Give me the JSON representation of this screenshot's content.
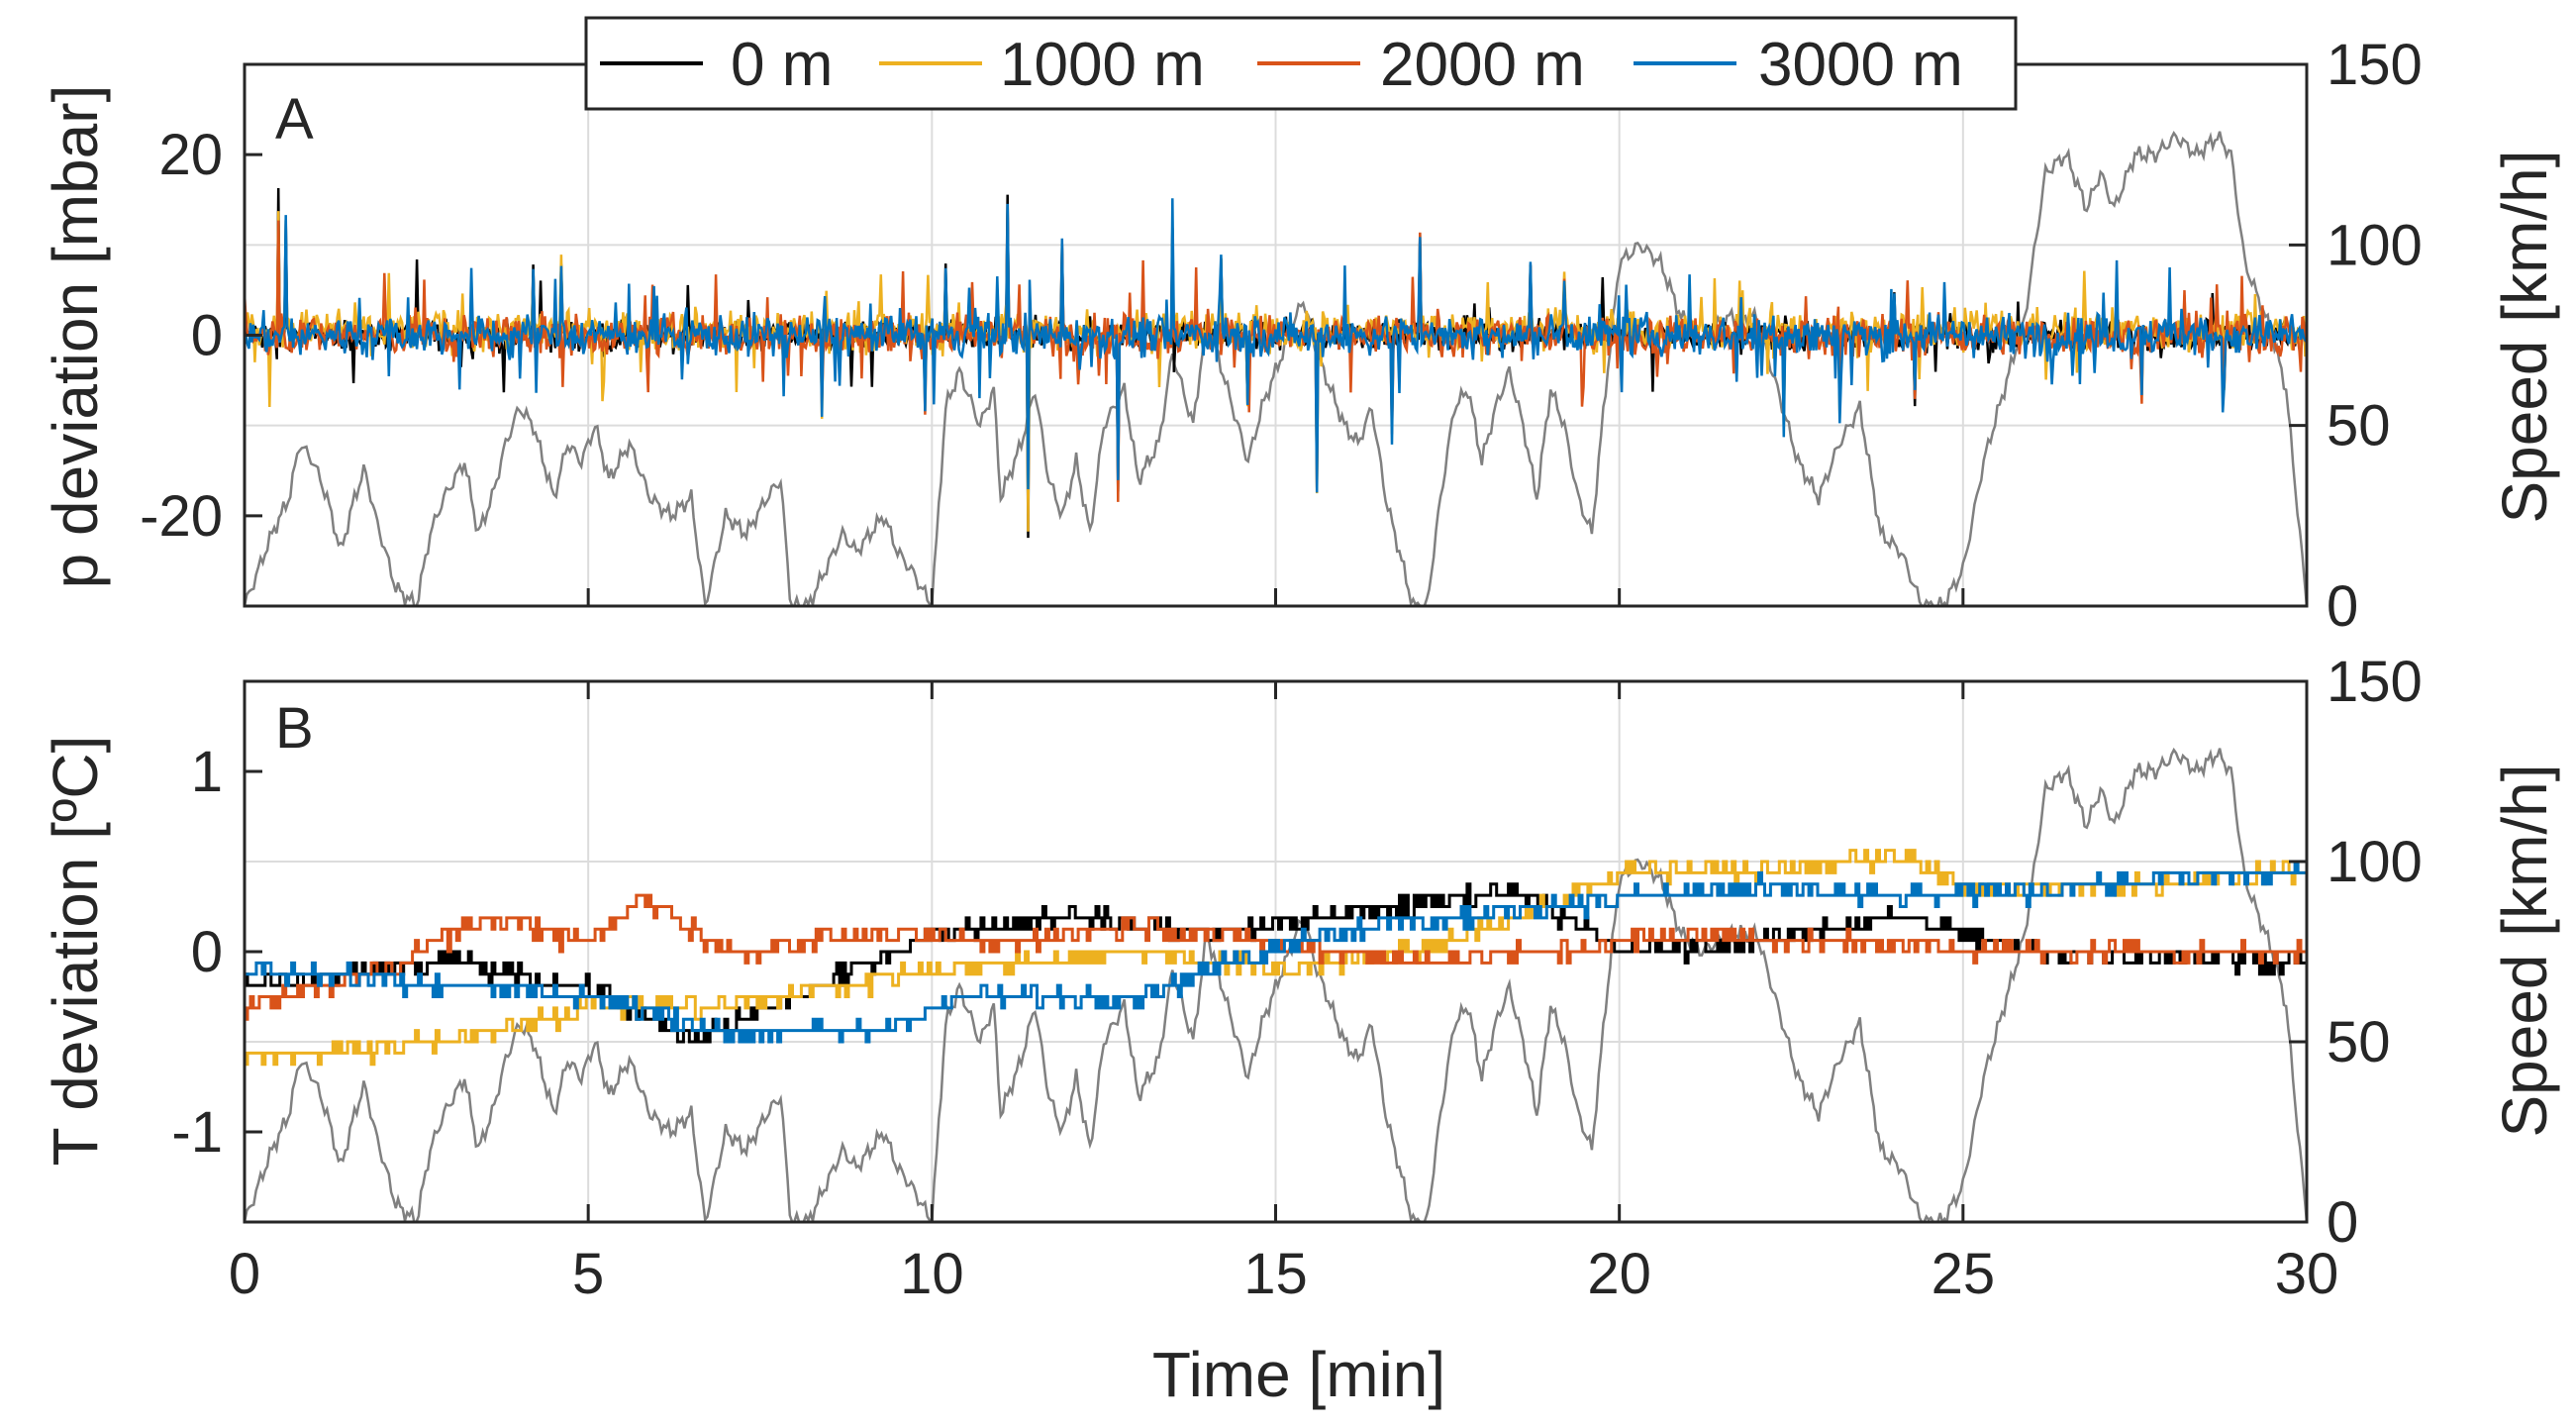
{
  "chart_data": [
    {
      "panel": "A",
      "type": "line",
      "xlabel": "",
      "ylabel": "p deviation [mbar]",
      "ylabel_right": "Speed [km/h]",
      "xlim": [
        0,
        30
      ],
      "ylim": [
        -30,
        30
      ],
      "ylim_right": [
        0,
        150
      ],
      "yticks": [
        -20,
        0,
        20
      ],
      "yticks_right": [
        0,
        50,
        100,
        150
      ],
      "xticks": [
        0,
        5,
        10,
        15,
        20,
        25,
        30
      ],
      "grid": true,
      "series": [
        {
          "name": "0 m",
          "color": "#000000",
          "base": 0,
          "noise": 1.2,
          "spikes": 0.02
        },
        {
          "name": "1000 m",
          "color": "#EDB120",
          "base": 1,
          "noise": 1.6,
          "spikes": 0.04
        },
        {
          "name": "2000 m",
          "color": "#D95319",
          "base": 0,
          "noise": 1.6,
          "spikes": 0.05
        },
        {
          "name": "3000 m",
          "color": "#0072BD",
          "base": 0,
          "noise": 1.6,
          "spikes": 0.05
        }
      ],
      "spike_events": [
        {
          "t": 0.5,
          "v": 17
        },
        {
          "t": 0.6,
          "v": 14
        },
        {
          "t": 4.2,
          "v": 8
        },
        {
          "t": 4.6,
          "v": 10
        },
        {
          "t": 8.4,
          "v": -10
        },
        {
          "t": 9.9,
          "v": -9
        },
        {
          "t": 10.2,
          "v": 8
        },
        {
          "t": 11.1,
          "v": 16
        },
        {
          "t": 11.4,
          "v": -23
        },
        {
          "t": 11.9,
          "v": 13
        },
        {
          "t": 12.7,
          "v": -22
        },
        {
          "t": 13.5,
          "v": 16
        },
        {
          "t": 14.2,
          "v": 12
        },
        {
          "t": 14.6,
          "v": -10
        },
        {
          "t": 15.6,
          "v": -19
        },
        {
          "t": 16.7,
          "v": -13
        },
        {
          "t": 17.1,
          "v": 15
        },
        {
          "t": 18.7,
          "v": 9
        },
        {
          "t": 19.2,
          "v": 8
        },
        {
          "t": 22.4,
          "v": -12
        },
        {
          "t": 23.2,
          "v": -10
        },
        {
          "t": 24.3,
          "v": -8
        },
        {
          "t": 27.6,
          "v": -8
        },
        {
          "t": 28.8,
          "v": -7
        }
      ]
    },
    {
      "panel": "B",
      "type": "line",
      "xlabel": "Time [min]",
      "ylabel": "T deviation [ºC]",
      "ylabel_right": "Speed [km/h]",
      "xlim": [
        0,
        30
      ],
      "ylim": [
        -1.5,
        1.5
      ],
      "ylim_right": [
        0,
        150
      ],
      "yticks": [
        -1,
        0,
        1
      ],
      "yticks_right": [
        0,
        50,
        100,
        150
      ],
      "xticks": [
        0,
        5,
        10,
        15,
        20,
        25,
        30
      ],
      "grid": true,
      "series": [
        {
          "name": "0 m",
          "color": "#000000",
          "trend": [
            [
              0,
              -0.2
            ],
            [
              3,
              -0.05
            ],
            [
              5,
              -0.2
            ],
            [
              6.5,
              -0.5
            ],
            [
              8,
              -0.25
            ],
            [
              10,
              0.1
            ],
            [
              12,
              0.2
            ],
            [
              14,
              0.1
            ],
            [
              16,
              0.2
            ],
            [
              18.5,
              0.35
            ],
            [
              20,
              0.0
            ],
            [
              22,
              0.05
            ],
            [
              24,
              0.2
            ],
            [
              26,
              0.0
            ],
            [
              30,
              -0.05
            ]
          ]
        },
        {
          "name": "1000 m",
          "color": "#EDB120",
          "trend": [
            [
              0,
              -0.6
            ],
            [
              3,
              -0.5
            ],
            [
              5,
              -0.3
            ],
            [
              7,
              -0.3
            ],
            [
              10,
              -0.1
            ],
            [
              13,
              0.0
            ],
            [
              15,
              -0.1
            ],
            [
              17,
              0.0
            ],
            [
              19,
              0.25
            ],
            [
              20,
              0.45
            ],
            [
              22.5,
              0.45
            ],
            [
              24,
              0.55
            ],
            [
              25,
              0.35
            ],
            [
              27,
              0.35
            ],
            [
              30,
              0.45
            ]
          ]
        },
        {
          "name": "2000 m",
          "color": "#D95319",
          "trend": [
            [
              0,
              -0.3
            ],
            [
              2,
              -0.1
            ],
            [
              3.5,
              0.2
            ],
            [
              5,
              0.05
            ],
            [
              5.8,
              0.3
            ],
            [
              7,
              0.0
            ],
            [
              9,
              0.1
            ],
            [
              11,
              0.05
            ],
            [
              13,
              0.15
            ],
            [
              15,
              0.05
            ],
            [
              17,
              -0.05
            ],
            [
              19,
              0.0
            ],
            [
              21,
              0.1
            ],
            [
              23,
              0.05
            ],
            [
              26,
              0.0
            ],
            [
              30,
              0.0
            ]
          ]
        },
        {
          "name": "3000 m",
          "color": "#0072BD",
          "trend": [
            [
              0,
              -0.1
            ],
            [
              2,
              -0.15
            ],
            [
              5,
              -0.25
            ],
            [
              7,
              -0.45
            ],
            [
              9,
              -0.45
            ],
            [
              10.5,
              -0.25
            ],
            [
              13,
              -0.25
            ],
            [
              14,
              -0.1
            ],
            [
              15.5,
              0.1
            ],
            [
              18,
              0.2
            ],
            [
              20,
              0.3
            ],
            [
              22,
              0.35
            ],
            [
              24,
              0.3
            ],
            [
              26,
              0.35
            ],
            [
              28,
              0.4
            ],
            [
              30,
              0.45
            ]
          ]
        }
      ]
    }
  ],
  "speed_profile": {
    "name": "Speed",
    "color": "#808080",
    "t": [
      0,
      0.4,
      0.65,
      0.8,
      1.0,
      1.2,
      1.4,
      1.6,
      1.75,
      1.9,
      2.2,
      2.5,
      2.7,
      2.9,
      3.2,
      3.4,
      3.6,
      3.8,
      4.0,
      4.2,
      4.5,
      4.7,
      4.9,
      5.1,
      5.3,
      5.6,
      5.9,
      6.2,
      6.5,
      6.7,
      7.0,
      7.3,
      7.6,
      7.8,
      7.95,
      8.2,
      8.7,
      8.9,
      9.1,
      9.3,
      9.5,
      9.7,
      10.0,
      10.2,
      10.4,
      10.7,
      10.9,
      11.0,
      11.3,
      11.5,
      11.7,
      11.9,
      12.1,
      12.3,
      12.5,
      12.8,
      13.0,
      13.3,
      13.5,
      13.8,
      14.0,
      14.3,
      14.6,
      14.8,
      15.0,
      15.2,
      15.4,
      15.6,
      15.8,
      16.0,
      16.2,
      16.4,
      16.6,
      16.8,
      17.0,
      17.2,
      17.4,
      17.6,
      17.8,
      18.0,
      18.2,
      18.4,
      18.6,
      18.8,
      19.0,
      19.2,
      19.4,
      19.6,
      19.8,
      20.0,
      20.3,
      20.6,
      20.9,
      21.2,
      21.6,
      22.0,
      22.3,
      22.6,
      22.9,
      23.2,
      23.5,
      23.8,
      24.1,
      24.4,
      24.7,
      25.0,
      25.3,
      25.6,
      25.9,
      26.2,
      26.5,
      26.8,
      27.0,
      27.2,
      27.5,
      27.8,
      28.1,
      28.4,
      28.7,
      28.9,
      29.1,
      29.3,
      29.5,
      29.7,
      29.85,
      30
    ],
    "v": [
      0,
      20,
      30,
      45,
      40,
      30,
      15,
      30,
      38,
      25,
      5,
      0,
      20,
      30,
      40,
      20,
      30,
      45,
      55,
      50,
      30,
      45,
      40,
      50,
      35,
      45,
      30,
      25,
      30,
      0,
      25,
      20,
      30,
      35,
      0,
      0,
      20,
      15,
      20,
      25,
      15,
      10,
      0,
      55,
      65,
      50,
      60,
      30,
      45,
      60,
      35,
      25,
      40,
      20,
      50,
      60,
      35,
      45,
      70,
      50,
      80,
      60,
      40,
      55,
      65,
      75,
      85,
      70,
      60,
      50,
      45,
      55,
      30,
      15,
      0,
      0,
      30,
      55,
      60,
      40,
      55,
      65,
      50,
      30,
      60,
      50,
      30,
      20,
      60,
      95,
      100,
      95,
      80,
      75,
      80,
      80,
      60,
      40,
      30,
      45,
      55,
      20,
      15,
      0,
      0,
      10,
      40,
      60,
      80,
      120,
      125,
      110,
      120,
      110,
      125,
      125,
      130,
      125,
      130,
      125,
      95,
      85,
      75,
      60,
      30,
      0
    ]
  },
  "legend": {
    "items": [
      {
        "label": "0 m",
        "color": "#000000"
      },
      {
        "label": "1000 m",
        "color": "#EDB120"
      },
      {
        "label": "2000 m",
        "color": "#D95319"
      },
      {
        "label": "3000 m",
        "color": "#0072BD"
      }
    ]
  },
  "colors": {
    "axis": "#262626",
    "grid": "#dcdcdc",
    "speed": "#808080"
  }
}
